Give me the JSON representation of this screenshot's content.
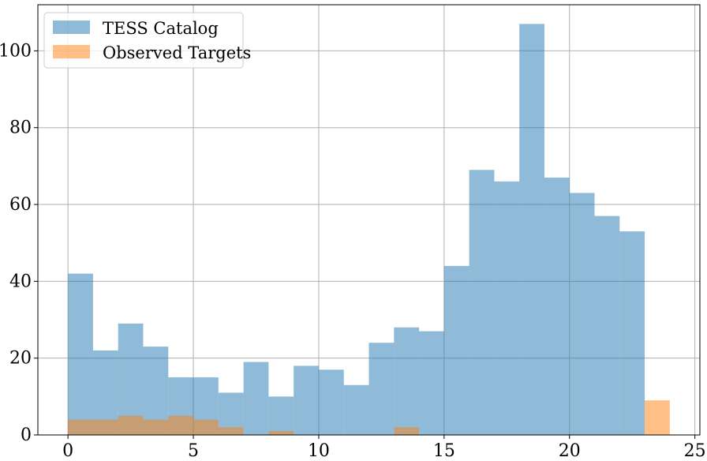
{
  "chart_data": {
    "type": "bar",
    "subtype": "histogram-overlay",
    "bin_width": 1.0,
    "bin_starts": [
      0,
      1,
      2,
      3,
      4,
      5,
      6,
      7,
      8,
      9,
      10,
      11,
      12,
      13,
      14,
      15,
      16,
      17,
      18,
      19,
      20,
      21,
      22,
      23
    ],
    "series": [
      {
        "name": "TESS Catalog",
        "color": "#1f77b4",
        "opacity": 0.5,
        "values": [
          42,
          22,
          29,
          23,
          15,
          15,
          11,
          19,
          10,
          18,
          17,
          13,
          24,
          28,
          27,
          44,
          69,
          66,
          107,
          67,
          63,
          57,
          53,
          0
        ]
      },
      {
        "name": "Observed Targets",
        "color": "#ff7f0e",
        "opacity": 0.5,
        "values": [
          4,
          4,
          5,
          4,
          5,
          4,
          2,
          0,
          1,
          0,
          0,
          0,
          0,
          2,
          0,
          0,
          0,
          0,
          0,
          0,
          0,
          0,
          0,
          9
        ]
      }
    ],
    "title": "",
    "xlabel": "",
    "ylabel": "",
    "xlim": [
      -1.2,
      25.2
    ],
    "ylim": [
      0,
      112
    ],
    "xticks": [
      0,
      5,
      10,
      15,
      20,
      25
    ],
    "yticks": [
      0,
      20,
      40,
      60,
      80,
      100
    ],
    "grid": true,
    "legend_position": "top-left"
  }
}
